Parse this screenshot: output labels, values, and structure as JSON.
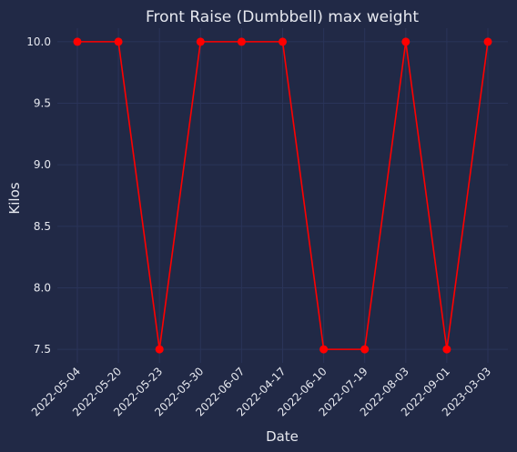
{
  "chart_data": {
    "type": "line",
    "title": "Front Raise (Dumbbell) max weight",
    "xlabel": "Date",
    "ylabel": "Kilos",
    "categories": [
      "2022-05-04",
      "2022-05-20",
      "2022-05-23",
      "2022-05-30",
      "2022-06-07",
      "2022-04-17",
      "2022-06-10",
      "2022-07-19",
      "2022-08-03",
      "2022-09-01",
      "2023-03-03"
    ],
    "values": [
      10.0,
      10.0,
      7.5,
      10.0,
      10.0,
      10.0,
      7.5,
      7.5,
      10.0,
      7.5,
      10.0
    ],
    "yticks": [
      "7.5",
      "8.0",
      "8.5",
      "9.0",
      "9.5",
      "10.0"
    ],
    "ylim": [
      7.39,
      10.11
    ],
    "grid": true,
    "colors": {
      "background": "#212946",
      "grid": "#2a3459",
      "line": "#ff0000",
      "text": "#e6e8ef"
    }
  }
}
